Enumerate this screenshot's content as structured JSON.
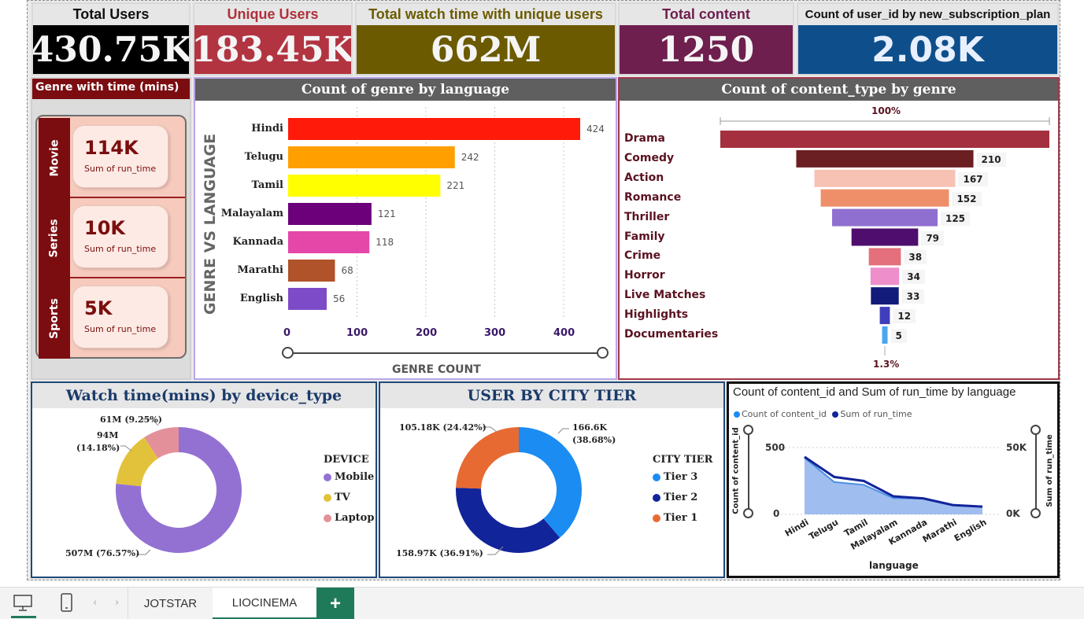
{
  "kpis": [
    {
      "title": "Total Users",
      "value": "430.75K",
      "head_color": "#111111",
      "bg": "#000000"
    },
    {
      "title": "Unique Users",
      "value": "183.45K",
      "head_color": "#b0303b",
      "bg": "#b23441"
    },
    {
      "title": "Total watch time with unique users",
      "value": "662M",
      "head_color": "#6b5b00",
      "bg": "#6b5a00"
    },
    {
      "title": "Total content",
      "value": "1250",
      "head_color": "#6d1e4c",
      "bg": "#6e1f4e"
    },
    {
      "title": "Count of user_id by new_subscription_plan",
      "value": "2.08K",
      "head_color": "#111111",
      "bg": "#0e4f8b"
    }
  ],
  "genre_time": {
    "title": "Genre with time (mins)",
    "items": [
      {
        "category": "Movie",
        "value": "114K",
        "label": "Sum of run_time"
      },
      {
        "category": "Series",
        "value": "10K",
        "label": "Sum of run_time"
      },
      {
        "category": "Sports",
        "value": "5K",
        "label": "Sum of run_time"
      }
    ]
  },
  "genre_language": {
    "title": "Count of genre by language",
    "y_axis_title": "GENRE VS LANGUAGE",
    "x_axis_title": "GENRE COUNT",
    "ticks": [
      "0",
      "100",
      "200",
      "300",
      "400"
    ]
  },
  "content_type": {
    "title": "Count of content_type by genre",
    "top_label": "100%",
    "bottom_label": "1.3%"
  },
  "device": {
    "title": "Watch time(mins) by device_type",
    "legend_title": "DEVICE",
    "labels": [
      "507M (76.57%)",
      "94M",
      "(14.18%)",
      "61M (9.25%)"
    ]
  },
  "city": {
    "title": "USER BY CITY TIER",
    "legend_title": "CITY TIER",
    "labels": [
      "166.6K",
      "(38.68%)",
      "158.97K (36.91%)",
      "105.18K (24.42%)"
    ]
  },
  "runtime": {
    "title": "Count of content_id and Sum of run_time by language",
    "legend": [
      "Count of content_id",
      "Sum of run_time"
    ],
    "left_axis_title": "Count of content_id",
    "right_axis_title": "Sum of run_time",
    "left_ticks": [
      "500",
      "0"
    ],
    "right_ticks": [
      "50K",
      "0K"
    ],
    "x_title": "language"
  },
  "chart_data": [
    {
      "type": "bar",
      "orientation": "horizontal",
      "title": "Count of genre by language",
      "categories": [
        "Hindi",
        "Telugu",
        "Tamil",
        "Malayalam",
        "Kannada",
        "Marathi",
        "English"
      ],
      "values": [
        424,
        242,
        221,
        121,
        118,
        68,
        56
      ],
      "colors": [
        "#ff1a0a",
        "#ffa000",
        "#ffff00",
        "#6b007a",
        "#e447a8",
        "#b0522a",
        "#7d4bc8"
      ],
      "xlabel": "GENRE COUNT",
      "ylabel": "GENRE VS LANGUAGE",
      "xlim": [
        0,
        480
      ]
    },
    {
      "type": "bar",
      "subtype": "funnel",
      "title": "Count of content_type by genre",
      "categories": [
        "Drama",
        "Comedy",
        "Action",
        "Romance",
        "Thriller",
        "Family",
        "Crime",
        "Horror",
        "Live Matches",
        "Highlights",
        "Documentaries"
      ],
      "values": [
        390,
        210,
        167,
        152,
        125,
        79,
        38,
        34,
        33,
        12,
        5
      ],
      "value_labels": [
        "",
        "210",
        "167",
        "152",
        "125",
        "79",
        "38",
        "34",
        "33",
        "12",
        "5"
      ],
      "colors": [
        "#a4303f",
        "#6b1f22",
        "#f7c2b3",
        "#ef8f6a",
        "#8f6fd0",
        "#4f0e6e",
        "#e3707c",
        "#ee8fcb",
        "#121a7a",
        "#3f3fbb",
        "#4aa7ef"
      ]
    },
    {
      "type": "pie",
      "subtype": "donut",
      "title": "Watch time(mins) by device_type",
      "categories": [
        "Mobile",
        "TV",
        "Laptop"
      ],
      "values": [
        507,
        94,
        61
      ],
      "percents": [
        76.57,
        14.18,
        9.25
      ],
      "colors": [
        "#9371d2",
        "#e2c23a",
        "#e4909a"
      ]
    },
    {
      "type": "pie",
      "subtype": "donut",
      "title": "USER BY CITY TIER",
      "categories": [
        "Tier 3",
        "Tier 2",
        "Tier 1"
      ],
      "values": [
        166.6,
        158.97,
        105.18
      ],
      "percents": [
        38.68,
        36.91,
        24.42
      ],
      "colors": [
        "#1b8cf2",
        "#12249a",
        "#e86a33"
      ]
    },
    {
      "type": "area",
      "title": "Count of content_id and Sum of run_time by language",
      "x": [
        "Hindi",
        "Telugu",
        "Tamil",
        "Malayalam",
        "Kannada",
        "Marathi",
        "English"
      ],
      "series": [
        {
          "name": "Count of content_id",
          "values": [
            424,
            242,
            221,
            121,
            118,
            68,
            56
          ],
          "color": "#1b8cf2"
        },
        {
          "name": "Sum of run_time",
          "values": [
            43000,
            28000,
            25000,
            13500,
            12000,
            7000,
            5800
          ],
          "color": "#12249a"
        }
      ],
      "xlabel": "language",
      "ylabel": "Count of content_id",
      "y2label": "Sum of run_time",
      "ylim": [
        0,
        500
      ],
      "y2lim": [
        0,
        50000
      ]
    }
  ],
  "bottom_tabs": [
    "JOTSTAR",
    "LIOCINEMA"
  ],
  "add_tab": "+"
}
